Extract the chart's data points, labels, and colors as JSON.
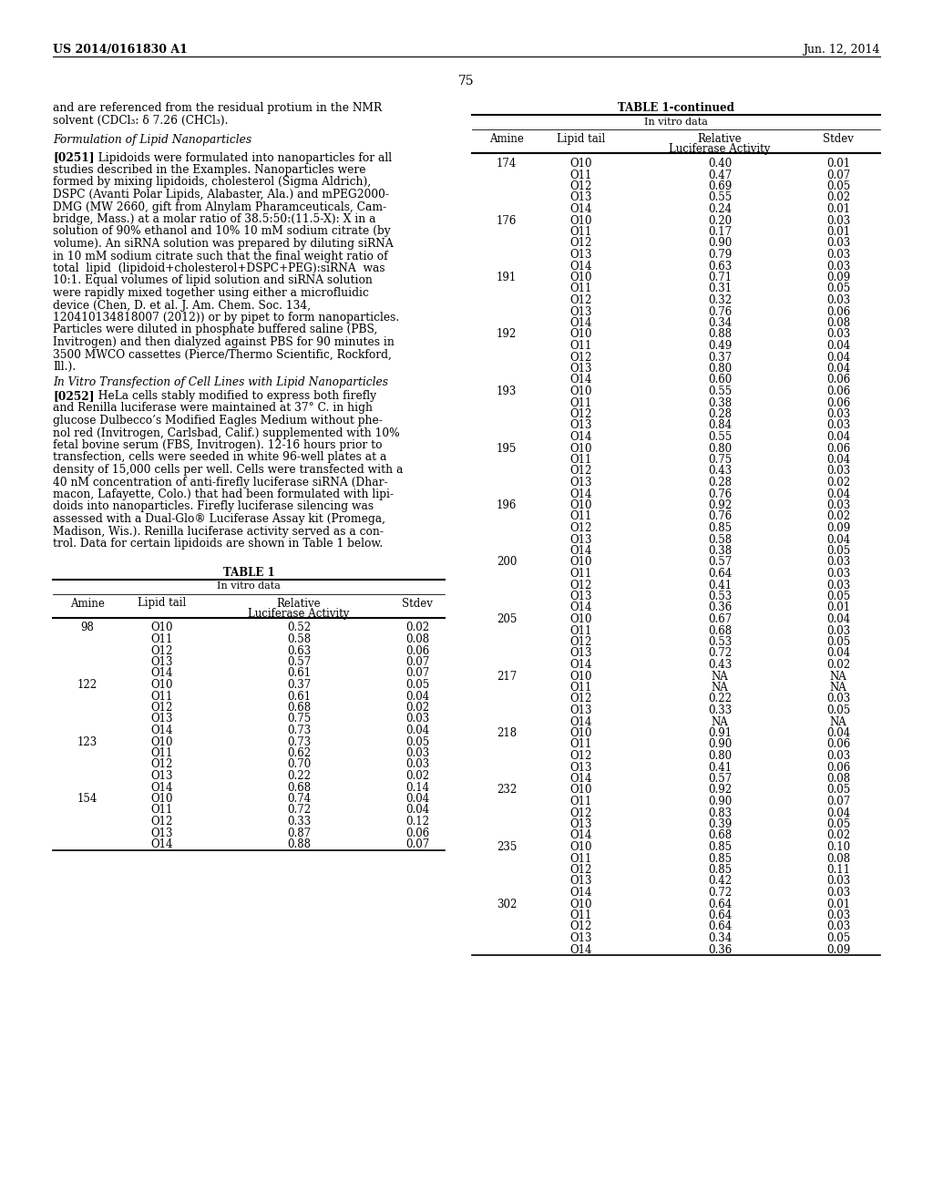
{
  "header_left": "US 2014/0161830 A1",
  "header_right": "Jun. 12, 2014",
  "page_number": "75",
  "table1_title": "TABLE 1",
  "table1_header1": "In vitro data",
  "table1_data": [
    [
      "98",
      "O10",
      "0.52",
      "0.02"
    ],
    [
      "",
      "O11",
      "0.58",
      "0.08"
    ],
    [
      "",
      "O12",
      "0.63",
      "0.06"
    ],
    [
      "",
      "O13",
      "0.57",
      "0.07"
    ],
    [
      "",
      "O14",
      "0.61",
      "0.07"
    ],
    [
      "122",
      "O10",
      "0.37",
      "0.05"
    ],
    [
      "",
      "O11",
      "0.61",
      "0.04"
    ],
    [
      "",
      "O12",
      "0.68",
      "0.02"
    ],
    [
      "",
      "O13",
      "0.75",
      "0.03"
    ],
    [
      "",
      "O14",
      "0.73",
      "0.04"
    ],
    [
      "123",
      "O10",
      "0.73",
      "0.05"
    ],
    [
      "",
      "O11",
      "0.62",
      "0.03"
    ],
    [
      "",
      "O12",
      "0.70",
      "0.03"
    ],
    [
      "",
      "O13",
      "0.22",
      "0.02"
    ],
    [
      "",
      "O14",
      "0.68",
      "0.14"
    ],
    [
      "154",
      "O10",
      "0.74",
      "0.04"
    ],
    [
      "",
      "O11",
      "0.72",
      "0.04"
    ],
    [
      "",
      "O12",
      "0.33",
      "0.12"
    ],
    [
      "",
      "O13",
      "0.87",
      "0.06"
    ],
    [
      "",
      "O14",
      "0.88",
      "0.07"
    ]
  ],
  "table2_title": "TABLE 1-continued",
  "table2_header1": "In vitro data",
  "table2_data": [
    [
      "174",
      "O10",
      "0.40",
      "0.01"
    ],
    [
      "",
      "O11",
      "0.47",
      "0.07"
    ],
    [
      "",
      "O12",
      "0.69",
      "0.05"
    ],
    [
      "",
      "O13",
      "0.55",
      "0.02"
    ],
    [
      "",
      "O14",
      "0.24",
      "0.01"
    ],
    [
      "176",
      "O10",
      "0.20",
      "0.03"
    ],
    [
      "",
      "O11",
      "0.17",
      "0.01"
    ],
    [
      "",
      "O12",
      "0.90",
      "0.03"
    ],
    [
      "",
      "O13",
      "0.79",
      "0.03"
    ],
    [
      "",
      "O14",
      "0.63",
      "0.03"
    ],
    [
      "191",
      "O10",
      "0.71",
      "0.09"
    ],
    [
      "",
      "O11",
      "0.31",
      "0.05"
    ],
    [
      "",
      "O12",
      "0.32",
      "0.03"
    ],
    [
      "",
      "O13",
      "0.76",
      "0.06"
    ],
    [
      "",
      "O14",
      "0.34",
      "0.08"
    ],
    [
      "192",
      "O10",
      "0.88",
      "0.03"
    ],
    [
      "",
      "O11",
      "0.49",
      "0.04"
    ],
    [
      "",
      "O12",
      "0.37",
      "0.04"
    ],
    [
      "",
      "O13",
      "0.80",
      "0.04"
    ],
    [
      "",
      "O14",
      "0.60",
      "0.06"
    ],
    [
      "193",
      "O10",
      "0.55",
      "0.06"
    ],
    [
      "",
      "O11",
      "0.38",
      "0.06"
    ],
    [
      "",
      "O12",
      "0.28",
      "0.03"
    ],
    [
      "",
      "O13",
      "0.84",
      "0.03"
    ],
    [
      "",
      "O14",
      "0.55",
      "0.04"
    ],
    [
      "195",
      "O10",
      "0.80",
      "0.06"
    ],
    [
      "",
      "O11",
      "0.75",
      "0.04"
    ],
    [
      "",
      "O12",
      "0.43",
      "0.03"
    ],
    [
      "",
      "O13",
      "0.28",
      "0.02"
    ],
    [
      "",
      "O14",
      "0.76",
      "0.04"
    ],
    [
      "196",
      "O10",
      "0.92",
      "0.03"
    ],
    [
      "",
      "O11",
      "0.76",
      "0.02"
    ],
    [
      "",
      "O12",
      "0.85",
      "0.09"
    ],
    [
      "",
      "O13",
      "0.58",
      "0.04"
    ],
    [
      "",
      "O14",
      "0.38",
      "0.05"
    ],
    [
      "200",
      "O10",
      "0.57",
      "0.03"
    ],
    [
      "",
      "O11",
      "0.64",
      "0.03"
    ],
    [
      "",
      "O12",
      "0.41",
      "0.03"
    ],
    [
      "",
      "O13",
      "0.53",
      "0.05"
    ],
    [
      "",
      "O14",
      "0.36",
      "0.01"
    ],
    [
      "205",
      "O10",
      "0.67",
      "0.04"
    ],
    [
      "",
      "O11",
      "0.68",
      "0.03"
    ],
    [
      "",
      "O12",
      "0.53",
      "0.05"
    ],
    [
      "",
      "O13",
      "0.72",
      "0.04"
    ],
    [
      "",
      "O14",
      "0.43",
      "0.02"
    ],
    [
      "217",
      "O10",
      "NA",
      "NA"
    ],
    [
      "",
      "O11",
      "NA",
      "NA"
    ],
    [
      "",
      "O12",
      "0.22",
      "0.03"
    ],
    [
      "",
      "O13",
      "0.33",
      "0.05"
    ],
    [
      "",
      "O14",
      "NA",
      "NA"
    ],
    [
      "218",
      "O10",
      "0.91",
      "0.04"
    ],
    [
      "",
      "O11",
      "0.90",
      "0.06"
    ],
    [
      "",
      "O12",
      "0.80",
      "0.03"
    ],
    [
      "",
      "O13",
      "0.41",
      "0.06"
    ],
    [
      "",
      "O14",
      "0.57",
      "0.08"
    ],
    [
      "232",
      "O10",
      "0.92",
      "0.05"
    ],
    [
      "",
      "O11",
      "0.90",
      "0.07"
    ],
    [
      "",
      "O12",
      "0.83",
      "0.04"
    ],
    [
      "",
      "O13",
      "0.39",
      "0.05"
    ],
    [
      "",
      "O14",
      "0.68",
      "0.02"
    ],
    [
      "235",
      "O10",
      "0.85",
      "0.10"
    ],
    [
      "",
      "O11",
      "0.85",
      "0.08"
    ],
    [
      "",
      "O12",
      "0.85",
      "0.11"
    ],
    [
      "",
      "O13",
      "0.42",
      "0.03"
    ],
    [
      "",
      "O14",
      "0.72",
      "0.03"
    ],
    [
      "302",
      "O10",
      "0.64",
      "0.01"
    ],
    [
      "",
      "O11",
      "0.64",
      "0.03"
    ],
    [
      "",
      "O12",
      "0.64",
      "0.03"
    ],
    [
      "",
      "O13",
      "0.34",
      "0.05"
    ],
    [
      "",
      "O14",
      "0.36",
      "0.09"
    ]
  ],
  "left_para1_lines": [
    "and are referenced from the residual protium in the NMR",
    "solvent (CDCl₃: δ 7.26 (CHCl₃)."
  ],
  "section1_heading": "Formulation of Lipid Nanoparticles",
  "para0251_lines": [
    "[0251]   Lipidoids were formulated into nanoparticles for all",
    "studies described in the Examples. Nanoparticles were",
    "formed by mixing lipidoids, cholesterol (Sigma Aldrich),",
    "DSPC (Avanti Polar Lipids, Alabaster, Ala.) and mPEG2000-",
    "DMG (MW 2660, gift from Alnylam Pharamceuticals, Cam-",
    "bridge, Mass.) at a molar ratio of 38.5:50:(11.5-X): X in a",
    "solution of 90% ethanol and 10% 10 mM sodium citrate (by",
    "volume). An siRNA solution was prepared by diluting siRNA",
    "in 10 mM sodium citrate such that the final weight ratio of",
    "total  lipid  (lipidoid+cholesterol+DSPC+PEG):siRNA  was",
    "10:1. Equal volumes of lipid solution and siRNA solution",
    "were rapidly mixed together using either a microfluidic",
    "device (Chen, D. et al. J. Am. Chem. Soc. 134,",
    "120410134818007 (2012)) or by pipet to form nanoparticles.",
    "Particles were diluted in phosphate buffered saline (PBS,",
    "Invitrogen) and then dialyzed against PBS for 90 minutes in",
    "3500 MWCO cassettes (Pierce/Thermo Scientific, Rockford,",
    "Ill.)."
  ],
  "section2_heading": "In Vitro Transfection of Cell Lines with Lipid Nanoparticles",
  "para0252_lines": [
    "[0252]   HeLa cells stably modified to express both firefly",
    "and Renilla luciferase were maintained at 37° C. in high",
    "glucose Dulbecco’s Modified Eagles Medium without phe-",
    "nol red (Invitrogen, Carlsbad, Calif.) supplemented with 10%",
    "fetal bovine serum (FBS, Invitrogen). 12-16 hours prior to",
    "transfection, cells were seeded in white 96-well plates at a",
    "density of 15,000 cells per well. Cells were transfected with a",
    "40 nM concentration of anti-firefly luciferase siRNA (Dhar-",
    "macon, Lafayette, Colo.) that had been formulated with lipi-",
    "doids into nanoparticles. Firefly luciferase silencing was",
    "assessed with a Dual-Glo® Luciferase Assay kit (Promega,",
    "Madison, Wis.). Renilla luciferase activity served as a con-",
    "trol. Data for certain lipidoids are shown in Table 1 below."
  ],
  "bg_color": "#ffffff"
}
